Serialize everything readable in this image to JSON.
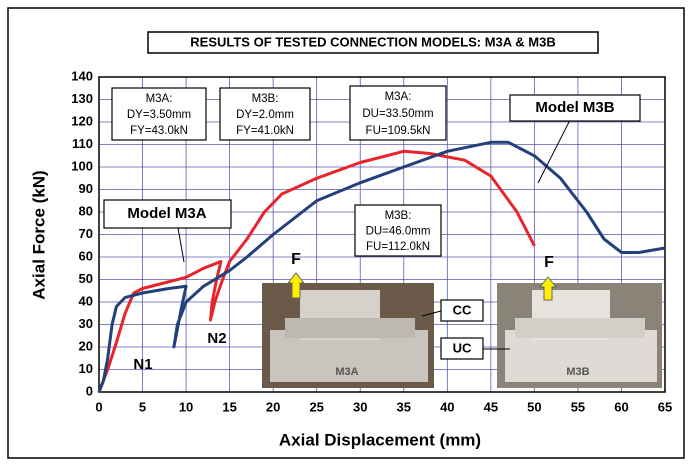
{
  "chart_data": {
    "type": "line",
    "title": "RESULTS OF TESTED CONNECTION MODELS: M3A & M3B",
    "x_label": "Axial Displacement (mm)",
    "y_label": "Axial Force (kN)",
    "xlim": [
      0,
      65
    ],
    "xticks": [
      0,
      5,
      10,
      15,
      20,
      25,
      30,
      35,
      40,
      45,
      50,
      55,
      60,
      65
    ],
    "ylim": [
      0,
      140
    ],
    "yticks": [
      0,
      10,
      20,
      30,
      40,
      50,
      60,
      70,
      80,
      90,
      100,
      110,
      120,
      130,
      140
    ],
    "grid": true,
    "series": [
      {
        "name": "Model M3A",
        "color": "#e8232a",
        "x": [
          0,
          1,
          2,
          3,
          4,
          5,
          7,
          10,
          12,
          14,
          13.5,
          13,
          12.8,
          13.3,
          14.2,
          15,
          17,
          19,
          21,
          25,
          30,
          35,
          38,
          42,
          45,
          48,
          50
        ],
        "values": [
          0,
          10,
          22,
          35,
          44,
          46,
          48,
          51,
          55,
          58,
          50,
          40,
          32,
          40,
          50,
          58,
          68,
          80,
          88,
          95,
          102,
          107,
          106,
          103,
          96,
          80,
          65
        ]
      },
      {
        "name": "Model M3B",
        "color": "#23407a",
        "x": [
          0,
          0.5,
          1,
          1.5,
          2,
          3,
          5,
          8,
          10,
          9.5,
          9,
          8.6,
          9,
          10,
          12,
          15,
          17,
          20,
          25,
          30,
          35,
          40,
          45,
          47,
          50,
          53,
          56,
          58,
          60,
          62,
          65
        ],
        "values": [
          0,
          5,
          15,
          30,
          38,
          42,
          44,
          46,
          47,
          38,
          28,
          20,
          30,
          40,
          47,
          54,
          60,
          70,
          85,
          93,
          100,
          107,
          111,
          111,
          105,
          95,
          80,
          68,
          62,
          62,
          64
        ]
      }
    ],
    "annotations": {
      "boxes": [
        [
          "M3A:",
          "DY=3.50mm",
          "FY=43.0kN"
        ],
        [
          "M3B:",
          "DY=2.0mm",
          "FY=41.0kN"
        ],
        [
          "M3A:",
          "DU=33.50mm",
          "FU=109.5kN"
        ],
        [
          "M3B:",
          "DU=46.0mm",
          "FU=112.0kN"
        ]
      ],
      "labels": [
        "N1",
        "N2",
        "F",
        "F",
        "CC",
        "UC",
        "M3A",
        "M3B"
      ]
    }
  }
}
